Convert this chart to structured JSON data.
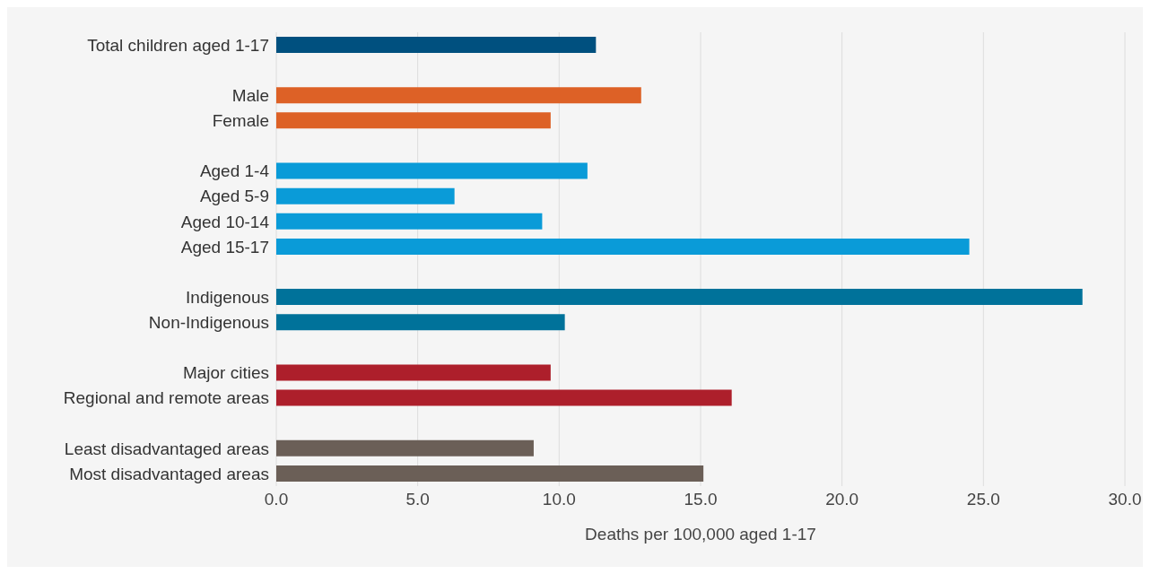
{
  "chart_data": {
    "type": "bar",
    "orientation": "horizontal",
    "xlabel": "Deaths per 100,000 aged 1-17",
    "categories": [
      "Total children aged 1-17",
      null,
      "Male",
      "Female",
      null,
      "Aged 1-4",
      "Aged 5-9",
      "Aged 10-14",
      "Aged 15-17",
      null,
      "Indigenous",
      "Non-Indigenous",
      null,
      "Major cities",
      "Regional and remote areas",
      null,
      "Least disadvantaged areas",
      "Most disadvantaged areas"
    ],
    "values": [
      11.3,
      null,
      12.9,
      9.7,
      null,
      11.0,
      6.3,
      9.4,
      24.5,
      null,
      28.5,
      10.2,
      null,
      9.7,
      16.1,
      null,
      9.1,
      15.1
    ],
    "colors": [
      "#00507f",
      null,
      "#dd6126",
      "#dd6126",
      null,
      "#0a9bd8",
      "#0a9bd8",
      "#0a9bd8",
      "#0a9bd8",
      null,
      "#00729a",
      "#00729a",
      null,
      "#ad1f2b",
      "#ad1f2b",
      null,
      "#6b5f57",
      "#6b5f57"
    ],
    "xlim": [
      0,
      30
    ],
    "xticks": [
      {
        "value": 0,
        "label": "0.0"
      },
      {
        "value": 5,
        "label": "5.0"
      },
      {
        "value": 10,
        "label": "10.0"
      },
      {
        "value": 15,
        "label": "15.0"
      },
      {
        "value": 20,
        "label": "20.0"
      },
      {
        "value": 25,
        "label": "25.0"
      },
      {
        "value": 30,
        "label": "30.0"
      }
    ],
    "grid": "x",
    "legend": false
  }
}
